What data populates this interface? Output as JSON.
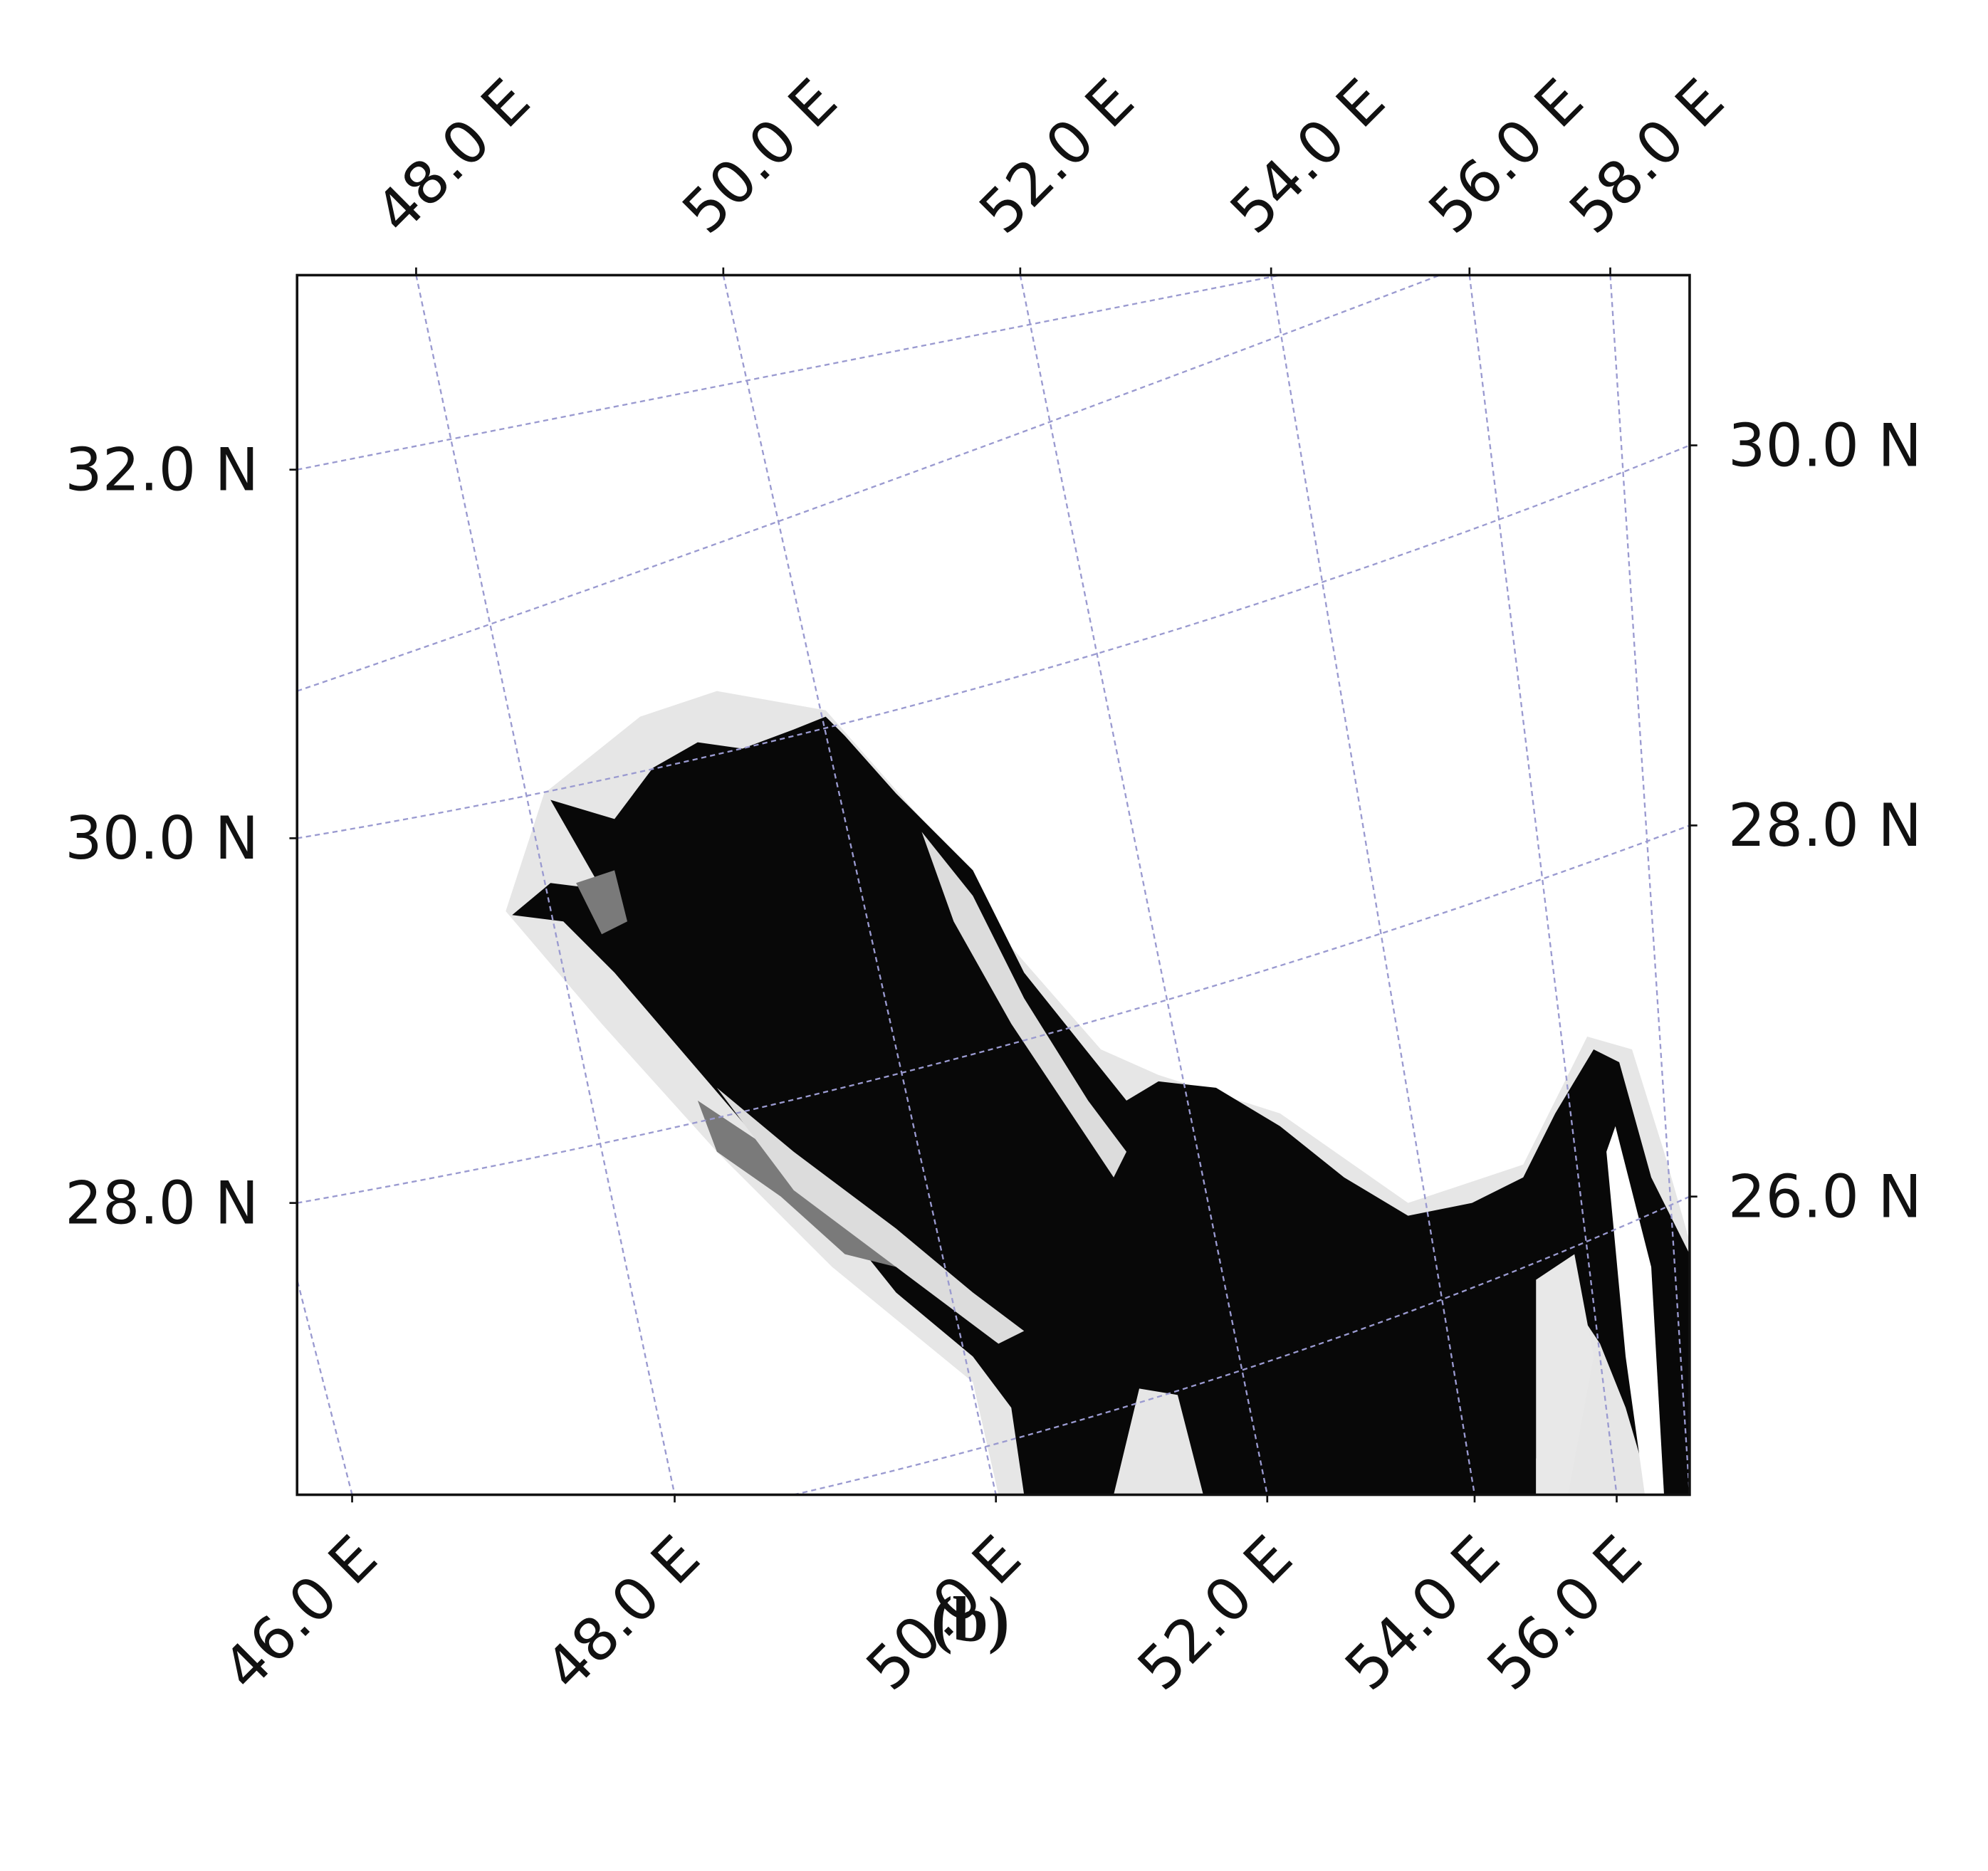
{
  "map": {
    "top_labels": [
      "48.0 E",
      "50.0 E",
      "52.0 E",
      "54.0 E",
      "56.0 E",
      "58.0 E"
    ],
    "bottom_labels": [
      "46.0 E",
      "48.0 E",
      "50.0 E",
      "52.0 E",
      "54.0 E",
      "56.0 E"
    ],
    "left_labels": [
      "32.0 N",
      "30.0 N",
      "28.0 N"
    ],
    "right_labels": [
      "30.0 N",
      "28.0 N",
      "26.0 N"
    ]
  },
  "caption": "(b)"
}
